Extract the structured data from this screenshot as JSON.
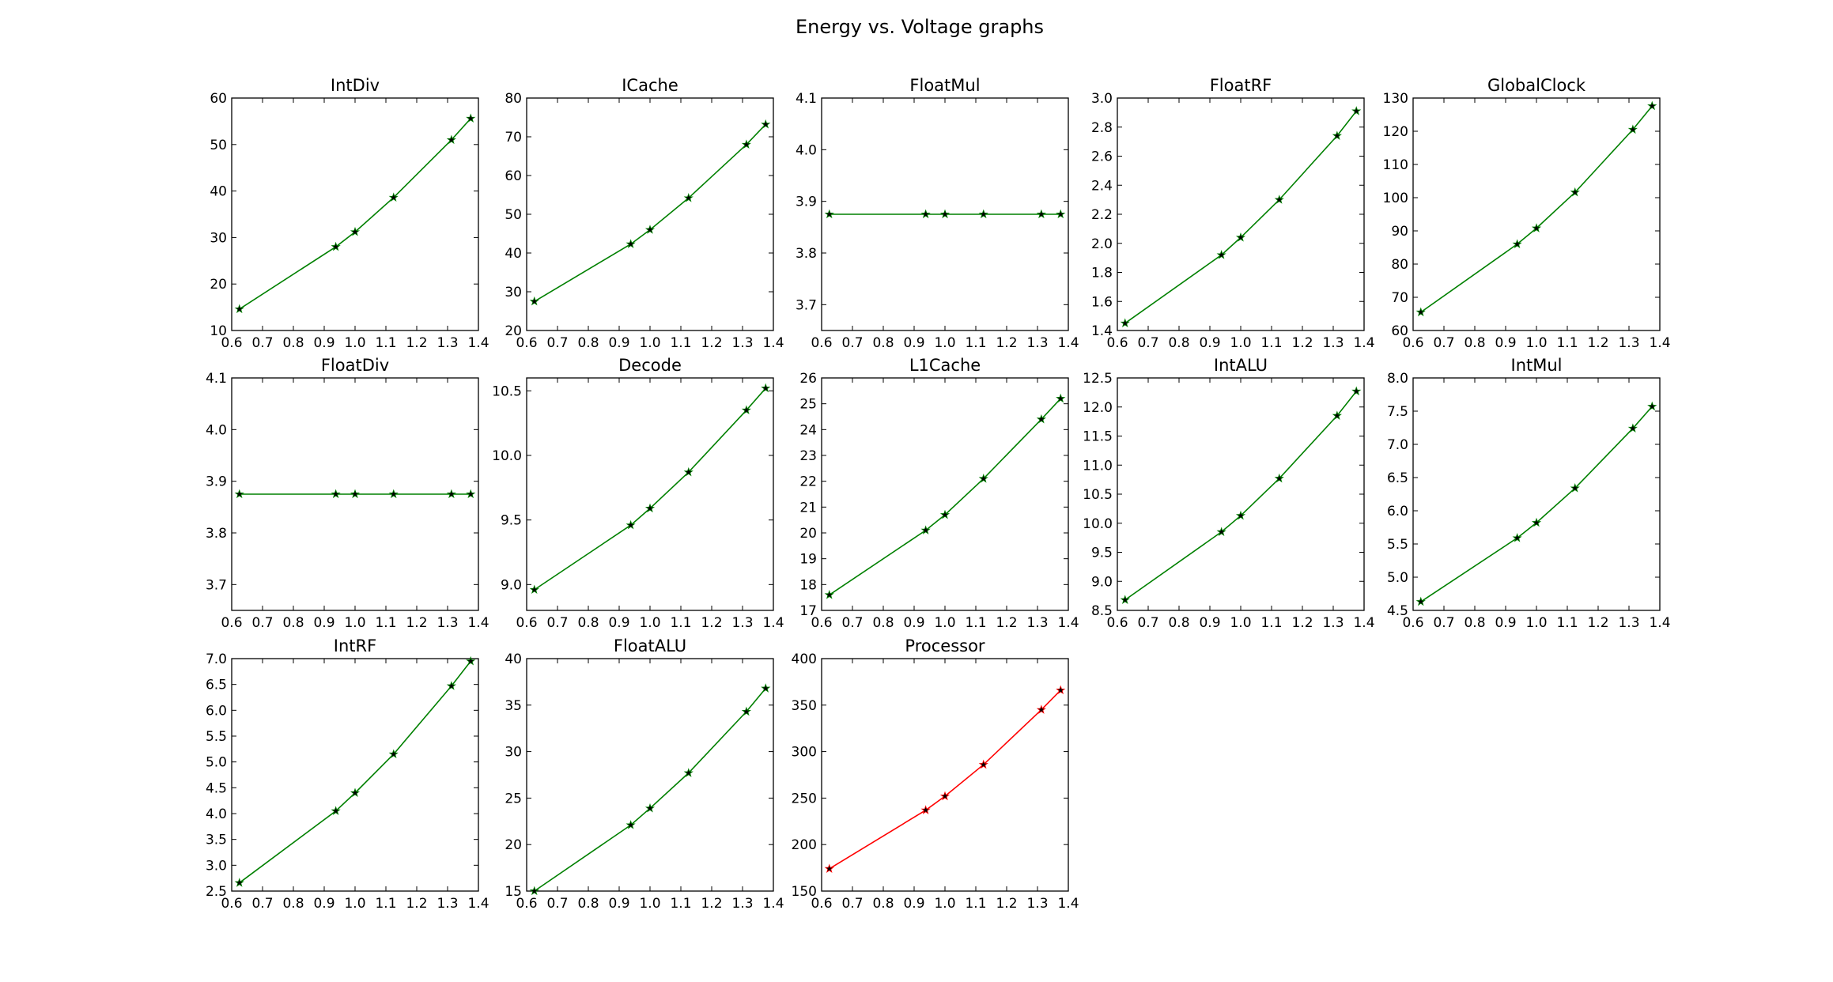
{
  "figure": {
    "suptitle": "Energy vs. Voltage graphs"
  },
  "chart_data": [
    {
      "type": "line",
      "title": "IntDiv",
      "x": [
        0.625,
        0.9375,
        1.0,
        1.125,
        1.3125,
        1.375
      ],
      "y": [
        14.6,
        28.0,
        31.2,
        38.6,
        51.0,
        55.6
      ],
      "xlim": [
        0.6,
        1.4
      ],
      "ylim": [
        10,
        60
      ],
      "xticks": [
        0.6,
        0.7,
        0.8,
        0.9,
        1.0,
        1.1,
        1.2,
        1.3,
        1.4
      ],
      "yticks": [
        10,
        20,
        30,
        40,
        50,
        60
      ],
      "ydec": 0,
      "color": "#008000",
      "marker": "star"
    },
    {
      "type": "line",
      "title": "ICache",
      "x": [
        0.625,
        0.9375,
        1.0,
        1.125,
        1.3125,
        1.375
      ],
      "y": [
        27.5,
        42.3,
        46.0,
        54.2,
        68.0,
        73.2
      ],
      "xlim": [
        0.6,
        1.4
      ],
      "ylim": [
        20,
        80
      ],
      "xticks": [
        0.6,
        0.7,
        0.8,
        0.9,
        1.0,
        1.1,
        1.2,
        1.3,
        1.4
      ],
      "yticks": [
        20,
        30,
        40,
        50,
        60,
        70,
        80
      ],
      "ydec": 0,
      "color": "#008000",
      "marker": "star"
    },
    {
      "type": "line",
      "title": "FloatMul",
      "x": [
        0.625,
        0.9375,
        1.0,
        1.125,
        1.3125,
        1.375
      ],
      "y": [
        3.875,
        3.875,
        3.875,
        3.875,
        3.875,
        3.875
      ],
      "xlim": [
        0.6,
        1.4
      ],
      "ylim": [
        3.65,
        4.1
      ],
      "xticks": [
        0.6,
        0.7,
        0.8,
        0.9,
        1.0,
        1.1,
        1.2,
        1.3,
        1.4
      ],
      "yticks": [
        3.7,
        3.8,
        3.9,
        4.0,
        4.1
      ],
      "ydec": 1,
      "color": "#008000",
      "marker": "star"
    },
    {
      "type": "line",
      "title": "FloatRF",
      "x": [
        0.625,
        0.9375,
        1.0,
        1.125,
        1.3125,
        1.375
      ],
      "y": [
        1.45,
        1.92,
        2.04,
        2.3,
        2.74,
        2.91
      ],
      "xlim": [
        0.6,
        1.4
      ],
      "ylim": [
        1.4,
        3.0
      ],
      "xticks": [
        0.6,
        0.7,
        0.8,
        0.9,
        1.0,
        1.1,
        1.2,
        1.3,
        1.4
      ],
      "yticks": [
        1.4,
        1.6,
        1.8,
        2.0,
        2.2,
        2.4,
        2.6,
        2.8,
        3.0
      ],
      "ydec": 1,
      "color": "#008000",
      "marker": "star"
    },
    {
      "type": "line",
      "title": "GlobalClock",
      "x": [
        0.625,
        0.9375,
        1.0,
        1.125,
        1.3125,
        1.375
      ],
      "y": [
        65.5,
        86.0,
        90.8,
        101.6,
        120.5,
        127.6
      ],
      "xlim": [
        0.6,
        1.4
      ],
      "ylim": [
        60,
        130
      ],
      "xticks": [
        0.6,
        0.7,
        0.8,
        0.9,
        1.0,
        1.1,
        1.2,
        1.3,
        1.4
      ],
      "yticks": [
        60,
        70,
        80,
        90,
        100,
        110,
        120,
        130
      ],
      "ydec": 0,
      "color": "#008000",
      "marker": "star"
    },
    {
      "type": "line",
      "title": "FloatDiv",
      "x": [
        0.625,
        0.9375,
        1.0,
        1.125,
        1.3125,
        1.375
      ],
      "y": [
        3.875,
        3.875,
        3.875,
        3.875,
        3.875,
        3.875
      ],
      "xlim": [
        0.6,
        1.4
      ],
      "ylim": [
        3.65,
        4.1
      ],
      "xticks": [
        0.6,
        0.7,
        0.8,
        0.9,
        1.0,
        1.1,
        1.2,
        1.3,
        1.4
      ],
      "yticks": [
        3.7,
        3.8,
        3.9,
        4.0,
        4.1
      ],
      "ydec": 1,
      "color": "#008000",
      "marker": "star"
    },
    {
      "type": "line",
      "title": "Decode",
      "x": [
        0.625,
        0.9375,
        1.0,
        1.125,
        1.3125,
        1.375
      ],
      "y": [
        8.96,
        9.46,
        9.59,
        9.87,
        10.35,
        10.52
      ],
      "xlim": [
        0.6,
        1.4
      ],
      "ylim": [
        8.8,
        10.6
      ],
      "xticks": [
        0.6,
        0.7,
        0.8,
        0.9,
        1.0,
        1.1,
        1.2,
        1.3,
        1.4
      ],
      "yticks": [
        9.0,
        9.5,
        10.0,
        10.5
      ],
      "ydec": 1,
      "color": "#008000",
      "marker": "star"
    },
    {
      "type": "line",
      "title": "L1Cache",
      "x": [
        0.625,
        0.9375,
        1.0,
        1.125,
        1.3125,
        1.375
      ],
      "y": [
        17.6,
        20.1,
        20.7,
        22.1,
        24.4,
        25.2
      ],
      "xlim": [
        0.6,
        1.4
      ],
      "ylim": [
        17,
        26
      ],
      "xticks": [
        0.6,
        0.7,
        0.8,
        0.9,
        1.0,
        1.1,
        1.2,
        1.3,
        1.4
      ],
      "yticks": [
        17,
        18,
        19,
        20,
        21,
        22,
        23,
        24,
        25,
        26
      ],
      "ydec": 0,
      "color": "#008000",
      "marker": "star"
    },
    {
      "type": "line",
      "title": "IntALU",
      "x": [
        0.625,
        0.9375,
        1.0,
        1.125,
        1.3125,
        1.375
      ],
      "y": [
        8.68,
        9.85,
        10.13,
        10.77,
        11.85,
        12.27
      ],
      "xlim": [
        0.6,
        1.4
      ],
      "ylim": [
        8.5,
        12.5
      ],
      "xticks": [
        0.6,
        0.7,
        0.8,
        0.9,
        1.0,
        1.1,
        1.2,
        1.3,
        1.4
      ],
      "yticks": [
        8.5,
        9.0,
        9.5,
        10.0,
        10.5,
        11.0,
        11.5,
        12.0,
        12.5
      ],
      "ydec": 1,
      "color": "#008000",
      "marker": "star"
    },
    {
      "type": "line",
      "title": "IntMul",
      "x": [
        0.625,
        0.9375,
        1.0,
        1.125,
        1.3125,
        1.375
      ],
      "y": [
        4.63,
        5.59,
        5.82,
        6.34,
        7.24,
        7.57
      ],
      "xlim": [
        0.6,
        1.4
      ],
      "ylim": [
        4.5,
        8.0
      ],
      "xticks": [
        0.6,
        0.7,
        0.8,
        0.9,
        1.0,
        1.1,
        1.2,
        1.3,
        1.4
      ],
      "yticks": [
        4.5,
        5.0,
        5.5,
        6.0,
        6.5,
        7.0,
        7.5,
        8.0
      ],
      "ydec": 1,
      "color": "#008000",
      "marker": "star"
    },
    {
      "type": "line",
      "title": "IntRF",
      "x": [
        0.625,
        0.9375,
        1.0,
        1.125,
        1.3125,
        1.375
      ],
      "y": [
        2.66,
        4.05,
        4.4,
        5.15,
        6.47,
        6.95
      ],
      "xlim": [
        0.6,
        1.4
      ],
      "ylim": [
        2.5,
        7.0
      ],
      "xticks": [
        0.6,
        0.7,
        0.8,
        0.9,
        1.0,
        1.1,
        1.2,
        1.3,
        1.4
      ],
      "yticks": [
        2.5,
        3.0,
        3.5,
        4.0,
        4.5,
        5.0,
        5.5,
        6.0,
        6.5,
        7.0
      ],
      "ydec": 1,
      "color": "#008000",
      "marker": "star"
    },
    {
      "type": "line",
      "title": "FloatALU",
      "x": [
        0.625,
        0.9375,
        1.0,
        1.125,
        1.3125,
        1.375
      ],
      "y": [
        15.0,
        22.1,
        23.9,
        27.7,
        34.3,
        36.8
      ],
      "xlim": [
        0.6,
        1.4
      ],
      "ylim": [
        15,
        40
      ],
      "xticks": [
        0.6,
        0.7,
        0.8,
        0.9,
        1.0,
        1.1,
        1.2,
        1.3,
        1.4
      ],
      "yticks": [
        15,
        20,
        25,
        30,
        35,
        40
      ],
      "ydec": 0,
      "color": "#008000",
      "marker": "star"
    },
    {
      "type": "line",
      "title": "Processor",
      "x": [
        0.625,
        0.9375,
        1.0,
        1.125,
        1.3125,
        1.375
      ],
      "y": [
        174,
        237,
        252,
        286,
        345,
        366
      ],
      "xlim": [
        0.6,
        1.4
      ],
      "ylim": [
        150,
        400
      ],
      "xticks": [
        0.6,
        0.7,
        0.8,
        0.9,
        1.0,
        1.1,
        1.2,
        1.3,
        1.4
      ],
      "yticks": [
        150,
        200,
        250,
        300,
        350,
        400
      ],
      "ydec": 0,
      "color": "#ff0000",
      "marker": "star"
    }
  ]
}
